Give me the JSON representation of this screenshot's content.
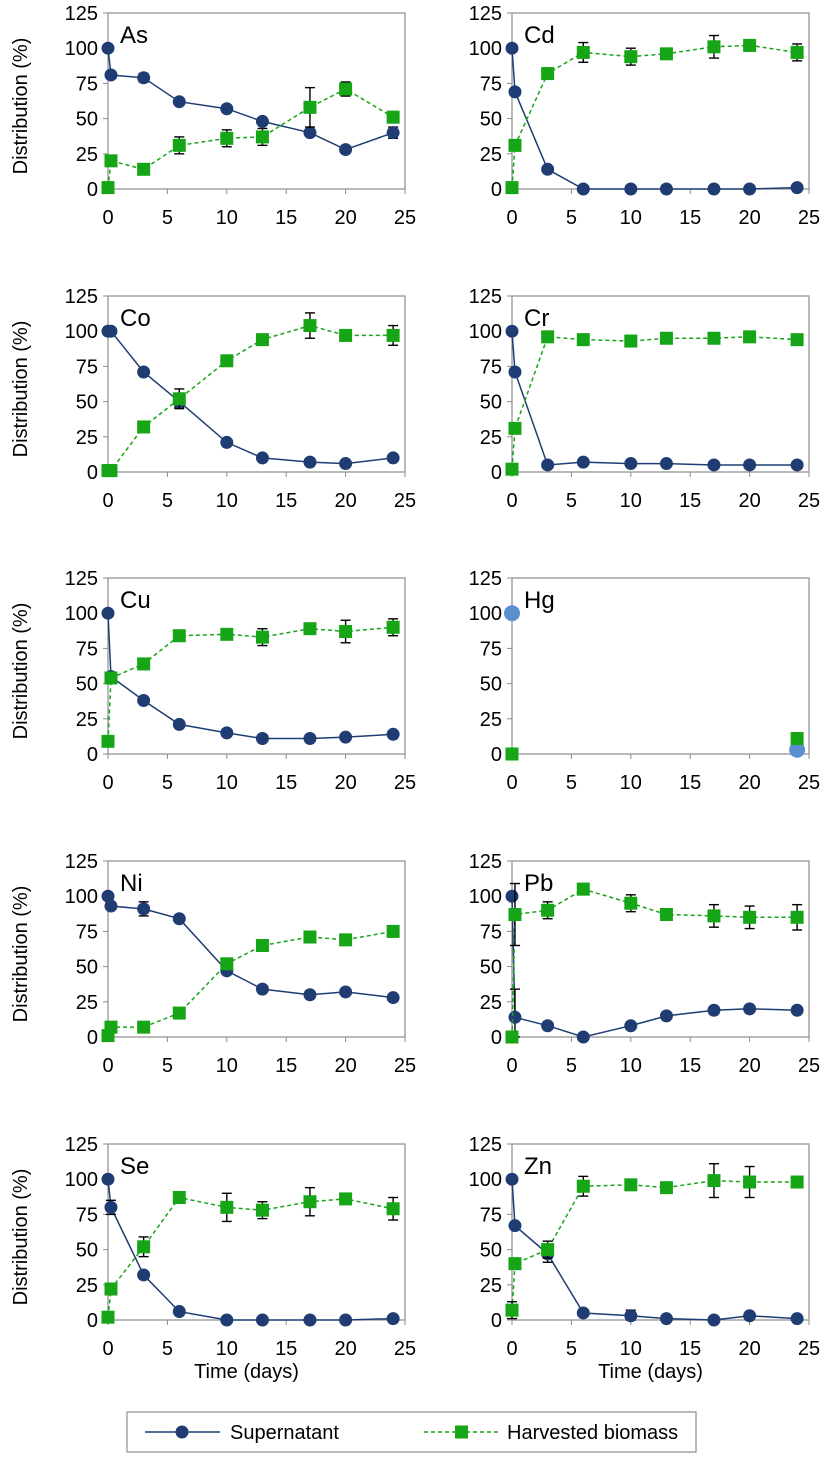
{
  "chart_data": {
    "type": "line",
    "series_names": [
      "Supernatant",
      "Harvested biomass"
    ],
    "series_colors": {
      "supernatant": "#1f3d73",
      "biomass": "#16a516",
      "hg_marker": "#5b8fcf"
    },
    "legend_position": "bottom-center",
    "xlabel": "Time (days)",
    "ylabel": "Distribution (%)",
    "xlim": [
      0,
      25
    ],
    "ylim": [
      0,
      125
    ],
    "xticks": [
      "0",
      "5",
      "10",
      "15",
      "20",
      "25"
    ],
    "yticks": [
      "0",
      "25",
      "50",
      "75",
      "100",
      "125"
    ],
    "grid": false,
    "panels": [
      {
        "label": "As",
        "supernatant": {
          "x": [
            0,
            0.25,
            3,
            6,
            10,
            13,
            17,
            20,
            24
          ],
          "y": [
            100,
            81,
            79,
            62,
            57,
            48,
            40,
            28,
            40
          ],
          "err": [
            0,
            0,
            3,
            0,
            0,
            0,
            0,
            0,
            4
          ]
        },
        "biomass": {
          "x": [
            0,
            0.25,
            3,
            6,
            10,
            13,
            17,
            20,
            24
          ],
          "y": [
            1,
            20,
            14,
            31,
            36,
            37,
            58,
            71,
            51
          ],
          "err": [
            0,
            0,
            0,
            6,
            6,
            6,
            14,
            5,
            4
          ]
        }
      },
      {
        "label": "Cd",
        "supernatant": {
          "x": [
            0,
            0.25,
            3,
            6,
            10,
            13,
            17,
            20,
            24
          ],
          "y": [
            100,
            69,
            14,
            0,
            0,
            0,
            0,
            0,
            1
          ],
          "err": [
            0,
            0,
            0,
            0,
            0,
            0,
            0,
            0,
            0
          ]
        },
        "biomass": {
          "x": [
            0,
            0.25,
            3,
            6,
            10,
            13,
            17,
            20,
            24
          ],
          "y": [
            1,
            31,
            82,
            97,
            94,
            96,
            101,
            102,
            97
          ],
          "err": [
            0,
            0,
            0,
            7,
            6,
            0,
            8,
            4,
            6
          ]
        }
      },
      {
        "label": "Co",
        "supernatant": {
          "x": [
            0,
            0.25,
            3,
            6,
            10,
            13,
            17,
            20,
            24
          ],
          "y": [
            100,
            100,
            71,
            50,
            21,
            10,
            7,
            6,
            10
          ],
          "err": [
            0,
            0,
            0,
            4,
            0,
            0,
            0,
            0,
            0
          ]
        },
        "biomass": {
          "x": [
            0,
            0.25,
            3,
            6,
            10,
            13,
            17,
            20,
            24
          ],
          "y": [
            1,
            1,
            32,
            52,
            79,
            94,
            104,
            97,
            97
          ],
          "err": [
            0,
            0,
            0,
            7,
            0,
            0,
            9,
            0,
            7
          ]
        }
      },
      {
        "label": "Cr",
        "supernatant": {
          "x": [
            0,
            0.25,
            3,
            6,
            10,
            13,
            17,
            20,
            24
          ],
          "y": [
            100,
            71,
            5,
            7,
            6,
            6,
            5,
            5,
            5
          ],
          "err": [
            0,
            0,
            0,
            0,
            0,
            0,
            0,
            0,
            0
          ]
        },
        "biomass": {
          "x": [
            0,
            0.25,
            3,
            6,
            10,
            13,
            17,
            20,
            24
          ],
          "y": [
            2,
            31,
            96,
            94,
            93,
            95,
            95,
            96,
            94
          ],
          "err": [
            0,
            0,
            0,
            0,
            0,
            0,
            0,
            0,
            0
          ]
        }
      },
      {
        "label": "Cu",
        "supernatant": {
          "x": [
            0,
            0.25,
            3,
            6,
            10,
            13,
            17,
            20,
            24
          ],
          "y": [
            100,
            55,
            38,
            21,
            15,
            11,
            11,
            12,
            14
          ],
          "err": [
            0,
            0,
            0,
            0,
            0,
            0,
            0,
            0,
            0
          ]
        },
        "biomass": {
          "x": [
            0,
            0.25,
            3,
            6,
            10,
            13,
            17,
            20,
            24
          ],
          "y": [
            9,
            54,
            64,
            84,
            85,
            83,
            89,
            87,
            90
          ],
          "err": [
            0,
            0,
            4,
            0,
            0,
            6,
            0,
            8,
            6
          ]
        }
      },
      {
        "label": "Hg",
        "supernatant": {
          "x": [
            0,
            24
          ],
          "y": [
            100,
            3
          ],
          "err": [
            0,
            0
          ]
        },
        "biomass": {
          "x": [
            0,
            24
          ],
          "y": [
            0,
            11
          ],
          "err": [
            0,
            0
          ]
        }
      },
      {
        "label": "Ni",
        "supernatant": {
          "x": [
            0,
            0.25,
            3,
            6,
            10,
            13,
            17,
            20,
            24
          ],
          "y": [
            100,
            93,
            91,
            84,
            47,
            34,
            30,
            32,
            28
          ],
          "err": [
            0,
            0,
            5,
            0,
            0,
            0,
            0,
            0,
            0
          ]
        },
        "biomass": {
          "x": [
            0,
            0.25,
            3,
            6,
            10,
            13,
            17,
            20,
            24
          ],
          "y": [
            1,
            7,
            7,
            17,
            52,
            65,
            71,
            69,
            75
          ],
          "err": [
            0,
            0,
            0,
            0,
            0,
            4,
            0,
            0,
            0
          ]
        }
      },
      {
        "label": "Pb",
        "supernatant": {
          "x": [
            0,
            0.25,
            3,
            6,
            10,
            13,
            17,
            20,
            24
          ],
          "y": [
            100,
            14,
            8,
            0,
            8,
            15,
            19,
            20,
            19
          ],
          "err": [
            0,
            20,
            0,
            0,
            0,
            0,
            0,
            0,
            0
          ]
        },
        "biomass": {
          "x": [
            0,
            0.25,
            3,
            6,
            10,
            13,
            17,
            20,
            24
          ],
          "y": [
            0,
            87,
            90,
            105,
            95,
            87,
            86,
            85,
            85
          ],
          "err": [
            0,
            22,
            6,
            4,
            6,
            0,
            8,
            8,
            9
          ]
        }
      },
      {
        "label": "Se",
        "supernatant": {
          "x": [
            0,
            0.25,
            3,
            6,
            10,
            13,
            17,
            20,
            24
          ],
          "y": [
            100,
            80,
            32,
            6,
            0,
            0,
            0,
            0,
            1
          ],
          "err": [
            0,
            5,
            0,
            0,
            0,
            0,
            0,
            0,
            0
          ]
        },
        "biomass": {
          "x": [
            0,
            0.25,
            3,
            6,
            10,
            13,
            17,
            20,
            24
          ],
          "y": [
            2,
            22,
            52,
            87,
            80,
            78,
            84,
            86,
            79
          ],
          "err": [
            0,
            4,
            7,
            0,
            10,
            6,
            10,
            0,
            8
          ]
        }
      },
      {
        "label": "Zn",
        "supernatant": {
          "x": [
            0,
            0.25,
            3,
            6,
            10,
            13,
            17,
            20,
            24
          ],
          "y": [
            100,
            67,
            47,
            5,
            3,
            1,
            0,
            3,
            1
          ],
          "err": [
            0,
            0,
            6,
            0,
            4,
            0,
            0,
            0,
            0
          ]
        },
        "biomass": {
          "x": [
            0,
            0.25,
            3,
            6,
            10,
            13,
            17,
            20,
            24
          ],
          "y": [
            7,
            40,
            50,
            95,
            96,
            94,
            99,
            98,
            98
          ],
          "err": [
            6,
            0,
            6,
            7,
            0,
            0,
            12,
            11,
            0
          ]
        }
      }
    ]
  }
}
